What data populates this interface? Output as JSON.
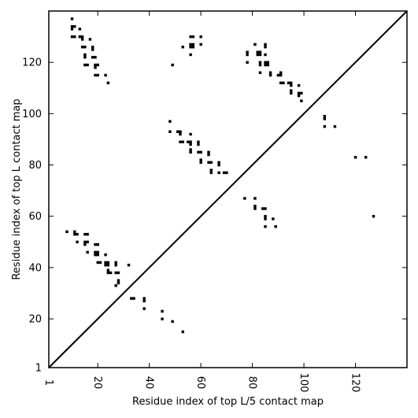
{
  "chart_data": {
    "type": "scatter",
    "xlabel": "Residue index of top L/5 contact map",
    "ylabel": "Residue index of top L contact map",
    "xlim": [
      1,
      140
    ],
    "ylim": [
      1,
      140
    ],
    "xticks": [
      1,
      20,
      40,
      60,
      80,
      100,
      120
    ],
    "yticks": [
      1,
      20,
      40,
      60,
      80,
      100,
      120
    ],
    "diagonal": true,
    "grid": false,
    "marker": "square",
    "color": "#000000",
    "points": [
      [
        10,
        137
      ],
      [
        10,
        134
      ],
      [
        11,
        134
      ],
      [
        10,
        133
      ],
      [
        13,
        133
      ],
      [
        10,
        130
      ],
      [
        11,
        130
      ],
      [
        13,
        130
      ],
      [
        14,
        130
      ],
      [
        14,
        129
      ],
      [
        17,
        129
      ],
      [
        14,
        126
      ],
      [
        15,
        126
      ],
      [
        18,
        126
      ],
      [
        18,
        125
      ],
      [
        15,
        123
      ],
      [
        15,
        122
      ],
      [
        18,
        122
      ],
      [
        19,
        122
      ],
      [
        15,
        119
      ],
      [
        16,
        119
      ],
      [
        19,
        119
      ],
      [
        20,
        119
      ],
      [
        19,
        118
      ],
      [
        19,
        115
      ],
      [
        20,
        115
      ],
      [
        23,
        115
      ],
      [
        24,
        112
      ],
      [
        49,
        119
      ],
      [
        53,
        126
      ],
      [
        56,
        123
      ],
      [
        56,
        130
      ],
      [
        57,
        130
      ],
      [
        60,
        130
      ],
      [
        56,
        127
      ],
      [
        57,
        127
      ],
      [
        60,
        127
      ],
      [
        56,
        126
      ],
      [
        57,
        126
      ],
      [
        78,
        124
      ],
      [
        78,
        123
      ],
      [
        82,
        124
      ],
      [
        83,
        124
      ],
      [
        82,
        123
      ],
      [
        83,
        123
      ],
      [
        81,
        127
      ],
      [
        85,
        127
      ],
      [
        85,
        126
      ],
      [
        85,
        123
      ],
      [
        78,
        120
      ],
      [
        83,
        120
      ],
      [
        83,
        119
      ],
      [
        85,
        120
      ],
      [
        86,
        120
      ],
      [
        85,
        119
      ],
      [
        86,
        119
      ],
      [
        83,
        116
      ],
      [
        87,
        116
      ],
      [
        87,
        115
      ],
      [
        90,
        115
      ],
      [
        91,
        115
      ],
      [
        91,
        116
      ],
      [
        91,
        112
      ],
      [
        92,
        112
      ],
      [
        94,
        112
      ],
      [
        95,
        112
      ],
      [
        95,
        111
      ],
      [
        98,
        111
      ],
      [
        95,
        109
      ],
      [
        95,
        108
      ],
      [
        98,
        108
      ],
      [
        99,
        108
      ],
      [
        98,
        107
      ],
      [
        99,
        105
      ],
      [
        108,
        99
      ],
      [
        108,
        98
      ],
      [
        108,
        95
      ],
      [
        112,
        95
      ],
      [
        120,
        83
      ],
      [
        124,
        83
      ],
      [
        127,
        60
      ],
      [
        48,
        97
      ],
      [
        48,
        93
      ],
      [
        51,
        93
      ],
      [
        52,
        93
      ],
      [
        52,
        92
      ],
      [
        56,
        92
      ],
      [
        52,
        89
      ],
      [
        53,
        89
      ],
      [
        55,
        89
      ],
      [
        56,
        89
      ],
      [
        56,
        88
      ],
      [
        59,
        89
      ],
      [
        59,
        88
      ],
      [
        56,
        86
      ],
      [
        56,
        85
      ],
      [
        59,
        85
      ],
      [
        60,
        85
      ],
      [
        63,
        85
      ],
      [
        63,
        84
      ],
      [
        60,
        82
      ],
      [
        60,
        81
      ],
      [
        63,
        81
      ],
      [
        64,
        81
      ],
      [
        67,
        81
      ],
      [
        67,
        80
      ],
      [
        64,
        78
      ],
      [
        64,
        77
      ],
      [
        67,
        77
      ],
      [
        69,
        77
      ],
      [
        70,
        77
      ],
      [
        77,
        67
      ],
      [
        81,
        67
      ],
      [
        81,
        64
      ],
      [
        81,
        63
      ],
      [
        84,
        63
      ],
      [
        85,
        63
      ],
      [
        85,
        60
      ],
      [
        85,
        59
      ],
      [
        88,
        59
      ],
      [
        85,
        56
      ],
      [
        89,
        56
      ],
      [
        8,
        54
      ],
      [
        11,
        54
      ],
      [
        11,
        53
      ],
      [
        12,
        53
      ],
      [
        15,
        53
      ],
      [
        16,
        53
      ],
      [
        12,
        50
      ],
      [
        15,
        50
      ],
      [
        16,
        50
      ],
      [
        15,
        49
      ],
      [
        19,
        49
      ],
      [
        20,
        49
      ],
      [
        16,
        46
      ],
      [
        19,
        46
      ],
      [
        20,
        46
      ],
      [
        19,
        45
      ],
      [
        20,
        45
      ],
      [
        23,
        45
      ],
      [
        20,
        42
      ],
      [
        21,
        42
      ],
      [
        23,
        42
      ],
      [
        24,
        42
      ],
      [
        23,
        41
      ],
      [
        24,
        41
      ],
      [
        27,
        42
      ],
      [
        27,
        41
      ],
      [
        32,
        41
      ],
      [
        24,
        39
      ],
      [
        24,
        38
      ],
      [
        25,
        38
      ],
      [
        27,
        38
      ],
      [
        28,
        38
      ],
      [
        28,
        35
      ],
      [
        28,
        34
      ],
      [
        27,
        33
      ],
      [
        33,
        28
      ],
      [
        34,
        28
      ],
      [
        38,
        28
      ],
      [
        38,
        27
      ],
      [
        38,
        24
      ],
      [
        45,
        23
      ],
      [
        45,
        20
      ],
      [
        49,
        19
      ],
      [
        53,
        15
      ]
    ]
  }
}
